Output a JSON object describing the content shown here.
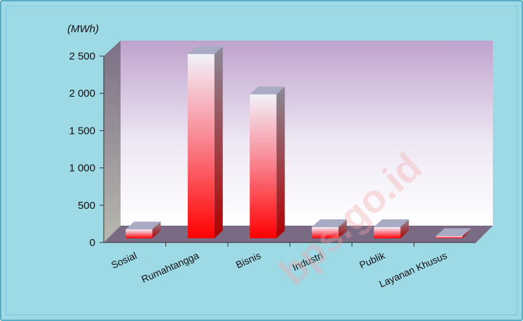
{
  "chart_data": {
    "type": "bar",
    "ylabel": "(MWh)",
    "categories": [
      "Sosial",
      "Rumahtangga",
      "Bisnis",
      "Industri",
      "Publik",
      "Layanan Khusus"
    ],
    "values": [
      120,
      2470,
      1930,
      150,
      150,
      30
    ],
    "yticks": [
      "0",
      "500",
      "1 000",
      "1 500",
      "2 000",
      "2 500"
    ],
    "ylim": [
      0,
      2500
    ],
    "grid": false,
    "style": "3d-column",
    "colors": {
      "bar_top": "#f4f4fb",
      "bar_bottom": "#ff0000",
      "background": "#9ed9e6"
    }
  },
  "watermark": "bps.go.id"
}
